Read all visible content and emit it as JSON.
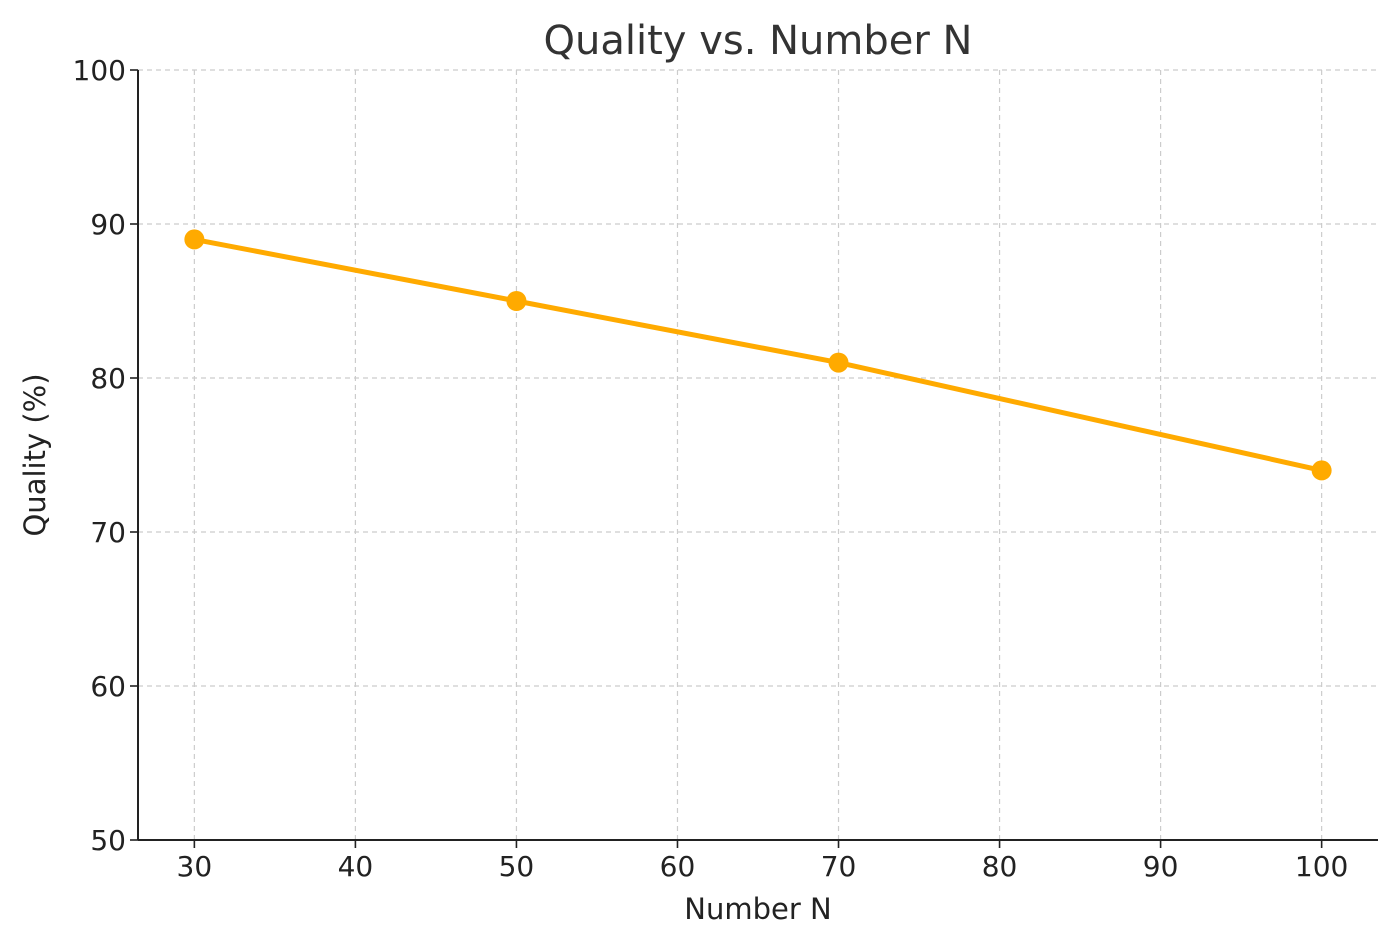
{
  "chart_data": {
    "type": "line",
    "title": "Quality vs. Number N",
    "xlabel": "Number N",
    "ylabel": "Quality (%)",
    "x": [
      30,
      50,
      70,
      100
    ],
    "series": [
      {
        "values": [
          89,
          85,
          81,
          74
        ],
        "color": "#FFAA00",
        "marker": "circle"
      }
    ],
    "xlim": [
      26.5,
      103.5
    ],
    "ylim": [
      50,
      100
    ],
    "xticks": [
      30,
      40,
      50,
      60,
      70,
      80,
      90,
      100
    ],
    "yticks": [
      50,
      60,
      70,
      80,
      90,
      100
    ],
    "grid": true,
    "grid_style": "dashed"
  }
}
